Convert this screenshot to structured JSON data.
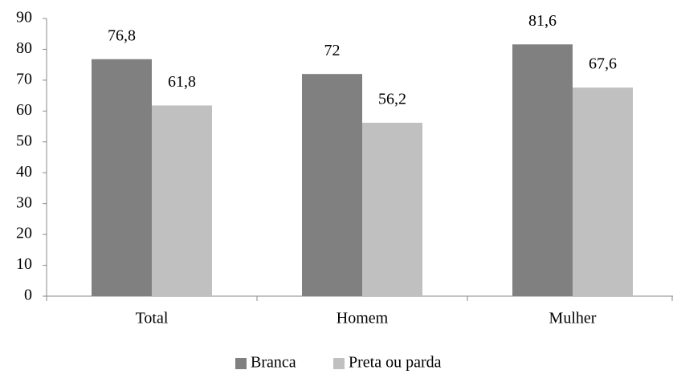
{
  "chart_data": {
    "type": "bar",
    "categories": [
      "Total",
      "Homem",
      "Mulher"
    ],
    "series": [
      {
        "name": "Branca",
        "color": "#808080",
        "values": [
          76.8,
          72,
          81.6
        ],
        "value_labels": [
          "76,8",
          "72",
          "81,6"
        ]
      },
      {
        "name": "Preta ou parda",
        "color": "#c0c0c0",
        "values": [
          61.8,
          56.2,
          67.6
        ],
        "value_labels": [
          "61,8",
          "56,2",
          "67,6"
        ]
      }
    ],
    "ylim": [
      0,
      90
    ],
    "yticks": [
      0,
      10,
      20,
      30,
      40,
      50,
      60,
      70,
      80,
      90
    ],
    "grid": false,
    "legend": "bottom"
  }
}
